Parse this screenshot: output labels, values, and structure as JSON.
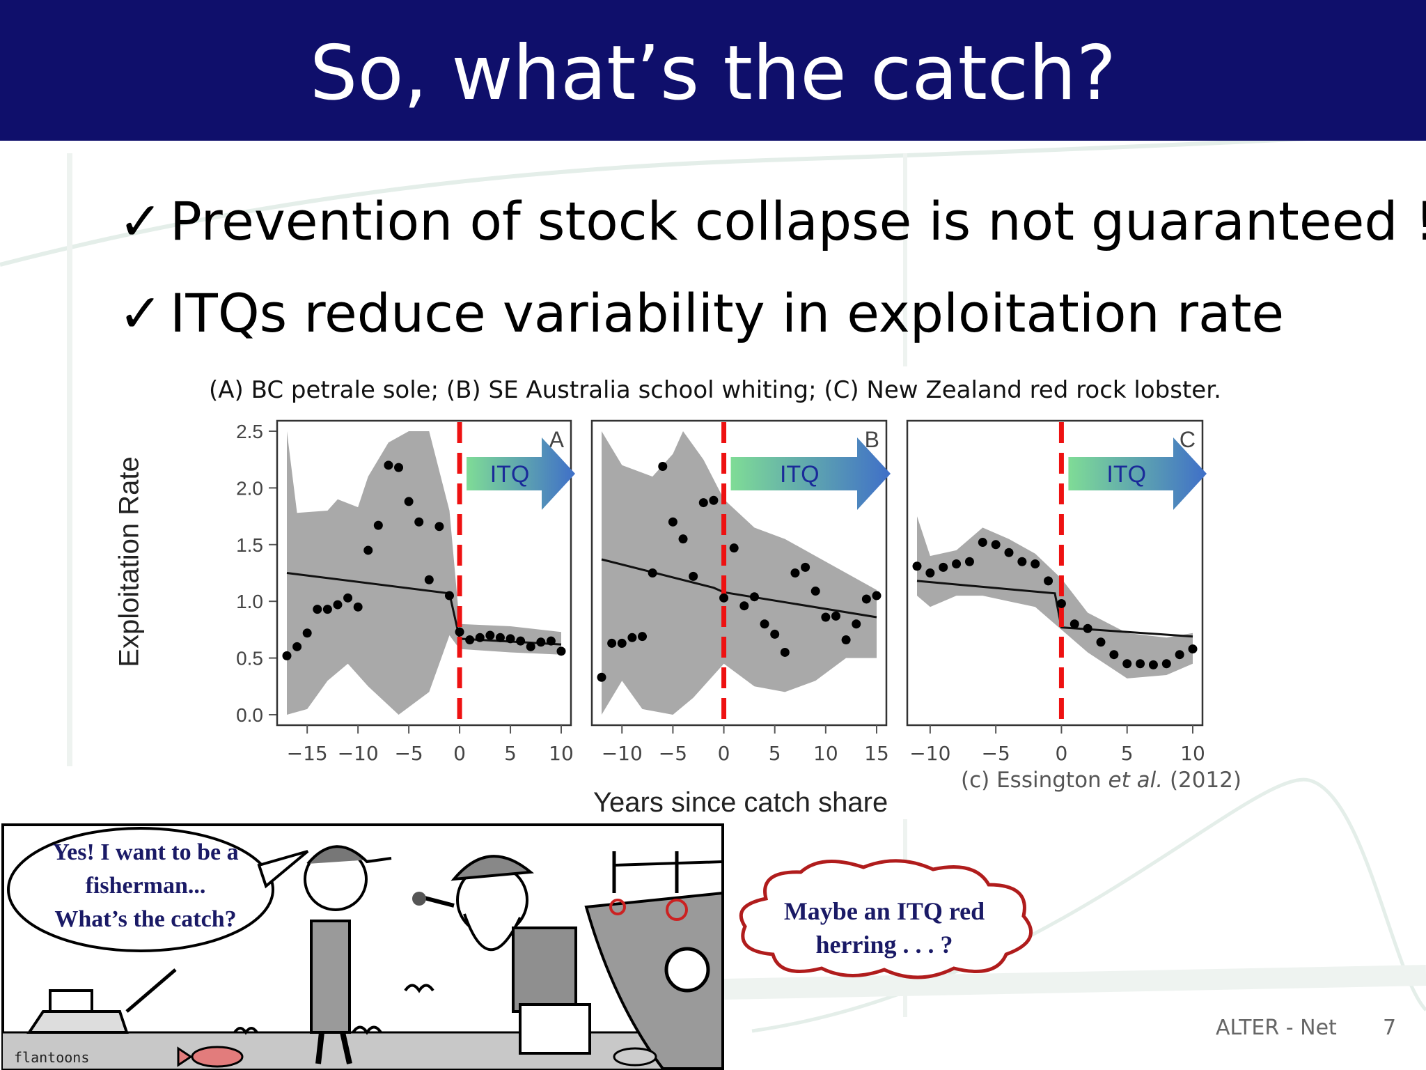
{
  "slide": {
    "title": "So, what’s the catch?",
    "bullets": [
      {
        "check": "✓",
        "text": "Prevention of stock collapse is not guaranteed !"
      },
      {
        "check": "✓",
        "text": "ITQs reduce variability in exploitation rate"
      }
    ],
    "footer": "ALTER - Net",
    "page_number": "7"
  },
  "cartoon": {
    "speech_left": [
      "Yes! I want to be a",
      "fisherman...",
      "What’s the catch?"
    ],
    "speech_right": [
      "Maybe an ITQ red",
      "herring . . . ?"
    ],
    "signature": "flantoons"
  },
  "colors": {
    "header": "#0f0f6b",
    "itq_line": "#ee1111",
    "band": "#a9a9a9",
    "arrow_start": "#7fdc96",
    "arrow_end": "#3f6fc8",
    "speech_text": "#1a1a66",
    "cloud_outline": "#b01c1c"
  },
  "chart_data": {
    "type": "scatter",
    "caption": "(A) BC petrale sole; (B) SE Australia school whiting; (C) New Zealand red rock lobster.",
    "citation": {
      "prefix": "(c) Essington ",
      "italic": "et al.",
      "suffix": " (2012)"
    },
    "xlabel": "Years since catch share",
    "ylabel": "Exploitation Rate",
    "ylim": [
      0,
      2.5
    ],
    "yticks": [
      "0.0",
      "0.5",
      "1.0",
      "1.5",
      "2.0",
      "2.5"
    ],
    "arrow_label": "ITQ",
    "panels": [
      {
        "name": "A",
        "xlim": [
          -17,
          10
        ],
        "xticks": [
          -15,
          -10,
          -5,
          0,
          5,
          10
        ],
        "tick_labels": [
          "−15",
          "−10",
          "−5",
          "0",
          "5",
          "10"
        ],
        "points": [
          {
            "x": -17,
            "y": 0.52
          },
          {
            "x": -16,
            "y": 0.6
          },
          {
            "x": -15,
            "y": 0.72
          },
          {
            "x": -14,
            "y": 0.93
          },
          {
            "x": -13,
            "y": 0.93
          },
          {
            "x": -12,
            "y": 0.97
          },
          {
            "x": -11,
            "y": 1.03
          },
          {
            "x": -10,
            "y": 0.95
          },
          {
            "x": -9,
            "y": 1.45
          },
          {
            "x": -8,
            "y": 1.67
          },
          {
            "x": -7,
            "y": 2.2
          },
          {
            "x": -6,
            "y": 2.18
          },
          {
            "x": -5,
            "y": 1.88
          },
          {
            "x": -4,
            "y": 1.7
          },
          {
            "x": -3,
            "y": 1.19
          },
          {
            "x": -2,
            "y": 1.66
          },
          {
            "x": -1,
            "y": 1.05
          },
          {
            "x": 0,
            "y": 0.73
          },
          {
            "x": 1,
            "y": 0.66
          },
          {
            "x": 2,
            "y": 0.68
          },
          {
            "x": 3,
            "y": 0.7
          },
          {
            "x": 4,
            "y": 0.68
          },
          {
            "x": 5,
            "y": 0.67
          },
          {
            "x": 6,
            "y": 0.65
          },
          {
            "x": 7,
            "y": 0.6
          },
          {
            "x": 8,
            "y": 0.64
          },
          {
            "x": 9,
            "y": 0.65
          },
          {
            "x": 10,
            "y": 0.56
          }
        ],
        "fit": [
          {
            "x": -17,
            "y": 1.25
          },
          {
            "x": -1,
            "y": 1.07
          },
          {
            "x": 0,
            "y": 0.67
          },
          {
            "x": 10,
            "y": 0.62
          }
        ],
        "band": {
          "upper": [
            {
              "x": -17,
              "y": 2.5
            },
            {
              "x": -16,
              "y": 1.78
            },
            {
              "x": -13,
              "y": 1.8
            },
            {
              "x": -12,
              "y": 1.9
            },
            {
              "x": -10,
              "y": 1.83
            },
            {
              "x": -9,
              "y": 2.1
            },
            {
              "x": -7,
              "y": 2.4
            },
            {
              "x": -5,
              "y": 2.5
            },
            {
              "x": -3,
              "y": 2.5
            },
            {
              "x": -1,
              "y": 1.8
            },
            {
              "x": 0,
              "y": 0.8
            },
            {
              "x": 5,
              "y": 0.78
            },
            {
              "x": 10,
              "y": 0.73
            }
          ],
          "lower": [
            {
              "x": 10,
              "y": 0.53
            },
            {
              "x": 5,
              "y": 0.55
            },
            {
              "x": 0,
              "y": 0.58
            },
            {
              "x": -1,
              "y": 0.7
            },
            {
              "x": -3,
              "y": 0.2
            },
            {
              "x": -6,
              "y": 0.0
            },
            {
              "x": -9,
              "y": 0.25
            },
            {
              "x": -11,
              "y": 0.45
            },
            {
              "x": -13,
              "y": 0.3
            },
            {
              "x": -15,
              "y": 0.05
            },
            {
              "x": -17,
              "y": 0.0
            }
          ]
        }
      },
      {
        "name": "B",
        "xlim": [
          -12,
          15
        ],
        "xticks": [
          -10,
          -5,
          0,
          5,
          10,
          15
        ],
        "tick_labels": [
          "−10",
          "−5",
          "0",
          "5",
          "10",
          "15"
        ],
        "points": [
          {
            "x": -12,
            "y": 0.33
          },
          {
            "x": -11,
            "y": 0.63
          },
          {
            "x": -10,
            "y": 0.63
          },
          {
            "x": -9,
            "y": 0.68
          },
          {
            "x": -8,
            "y": 0.69
          },
          {
            "x": -7,
            "y": 1.25
          },
          {
            "x": -6,
            "y": 2.19
          },
          {
            "x": -5,
            "y": 1.7
          },
          {
            "x": -4,
            "y": 1.55
          },
          {
            "x": -3,
            "y": 1.22
          },
          {
            "x": -2,
            "y": 1.87
          },
          {
            "x": -1,
            "y": 1.89
          },
          {
            "x": 0,
            "y": 1.03
          },
          {
            "x": 1,
            "y": 1.47
          },
          {
            "x": 2,
            "y": 0.96
          },
          {
            "x": 3,
            "y": 1.04
          },
          {
            "x": 4,
            "y": 0.8
          },
          {
            "x": 5,
            "y": 0.71
          },
          {
            "x": 6,
            "y": 0.55
          },
          {
            "x": 7,
            "y": 1.25
          },
          {
            "x": 8,
            "y": 1.3
          },
          {
            "x": 9,
            "y": 1.09
          },
          {
            "x": 10,
            "y": 0.86
          },
          {
            "x": 11,
            "y": 0.87
          },
          {
            "x": 12,
            "y": 0.66
          },
          {
            "x": 13,
            "y": 0.8
          },
          {
            "x": 14,
            "y": 1.02
          },
          {
            "x": 15,
            "y": 1.05
          }
        ],
        "fit": [
          {
            "x": -12,
            "y": 1.37
          },
          {
            "x": -1,
            "y": 1.12
          },
          {
            "x": 0,
            "y": 1.08
          },
          {
            "x": 15,
            "y": 0.86
          }
        ],
        "band": {
          "upper": [
            {
              "x": -12,
              "y": 2.5
            },
            {
              "x": -10,
              "y": 2.2
            },
            {
              "x": -7,
              "y": 2.1
            },
            {
              "x": -5,
              "y": 2.3
            },
            {
              "x": -4,
              "y": 2.5
            },
            {
              "x": -2,
              "y": 2.25
            },
            {
              "x": 0,
              "y": 1.9
            },
            {
              "x": 3,
              "y": 1.65
            },
            {
              "x": 6,
              "y": 1.55
            },
            {
              "x": 9,
              "y": 1.4
            },
            {
              "x": 12,
              "y": 1.25
            },
            {
              "x": 15,
              "y": 1.1
            }
          ],
          "lower": [
            {
              "x": 15,
              "y": 0.5
            },
            {
              "x": 12,
              "y": 0.5
            },
            {
              "x": 9,
              "y": 0.3
            },
            {
              "x": 6,
              "y": 0.2
            },
            {
              "x": 3,
              "y": 0.25
            },
            {
              "x": 0,
              "y": 0.45
            },
            {
              "x": -3,
              "y": 0.15
            },
            {
              "x": -5,
              "y": 0.0
            },
            {
              "x": -8,
              "y": 0.05
            },
            {
              "x": -10,
              "y": 0.3
            },
            {
              "x": -12,
              "y": 0.0
            }
          ]
        }
      },
      {
        "name": "C",
        "xlim": [
          -11,
          10
        ],
        "xticks": [
          -10,
          -5,
          0,
          5,
          10
        ],
        "tick_labels": [
          "−10",
          "−5",
          "0",
          "5",
          "10"
        ],
        "points": [
          {
            "x": -11,
            "y": 1.31
          },
          {
            "x": -10,
            "y": 1.25
          },
          {
            "x": -9,
            "y": 1.3
          },
          {
            "x": -8,
            "y": 1.33
          },
          {
            "x": -7,
            "y": 1.35
          },
          {
            "x": -6,
            "y": 1.52
          },
          {
            "x": -5,
            "y": 1.5
          },
          {
            "x": -4,
            "y": 1.43
          },
          {
            "x": -3,
            "y": 1.35
          },
          {
            "x": -2,
            "y": 1.33
          },
          {
            "x": -1,
            "y": 1.18
          },
          {
            "x": 0,
            "y": 0.98
          },
          {
            "x": 1,
            "y": 0.8
          },
          {
            "x": 2,
            "y": 0.76
          },
          {
            "x": 3,
            "y": 0.64
          },
          {
            "x": 4,
            "y": 0.53
          },
          {
            "x": 5,
            "y": 0.45
          },
          {
            "x": 6,
            "y": 0.45
          },
          {
            "x": 7,
            "y": 0.44
          },
          {
            "x": 8,
            "y": 0.45
          },
          {
            "x": 9,
            "y": 0.53
          },
          {
            "x": 10,
            "y": 0.58
          }
        ],
        "fit": [
          {
            "x": -11,
            "y": 1.18
          },
          {
            "x": -0.5,
            "y": 1.07
          },
          {
            "x": 0,
            "y": 0.77
          },
          {
            "x": 10,
            "y": 0.69
          }
        ],
        "band": {
          "upper": [
            {
              "x": -11,
              "y": 1.75
            },
            {
              "x": -10,
              "y": 1.4
            },
            {
              "x": -8,
              "y": 1.45
            },
            {
              "x": -6,
              "y": 1.65
            },
            {
              "x": -4,
              "y": 1.55
            },
            {
              "x": -2,
              "y": 1.42
            },
            {
              "x": 0,
              "y": 1.2
            },
            {
              "x": 2,
              "y": 0.9
            },
            {
              "x": 5,
              "y": 0.72
            },
            {
              "x": 8,
              "y": 0.68
            },
            {
              "x": 10,
              "y": 0.72
            }
          ],
          "lower": [
            {
              "x": 10,
              "y": 0.45
            },
            {
              "x": 8,
              "y": 0.35
            },
            {
              "x": 5,
              "y": 0.32
            },
            {
              "x": 2,
              "y": 0.55
            },
            {
              "x": 0,
              "y": 0.75
            },
            {
              "x": -2,
              "y": 0.95
            },
            {
              "x": -4,
              "y": 1.0
            },
            {
              "x": -6,
              "y": 1.05
            },
            {
              "x": -8,
              "y": 1.05
            },
            {
              "x": -10,
              "y": 0.95
            },
            {
              "x": -11,
              "y": 1.05
            }
          ]
        }
      }
    ]
  }
}
